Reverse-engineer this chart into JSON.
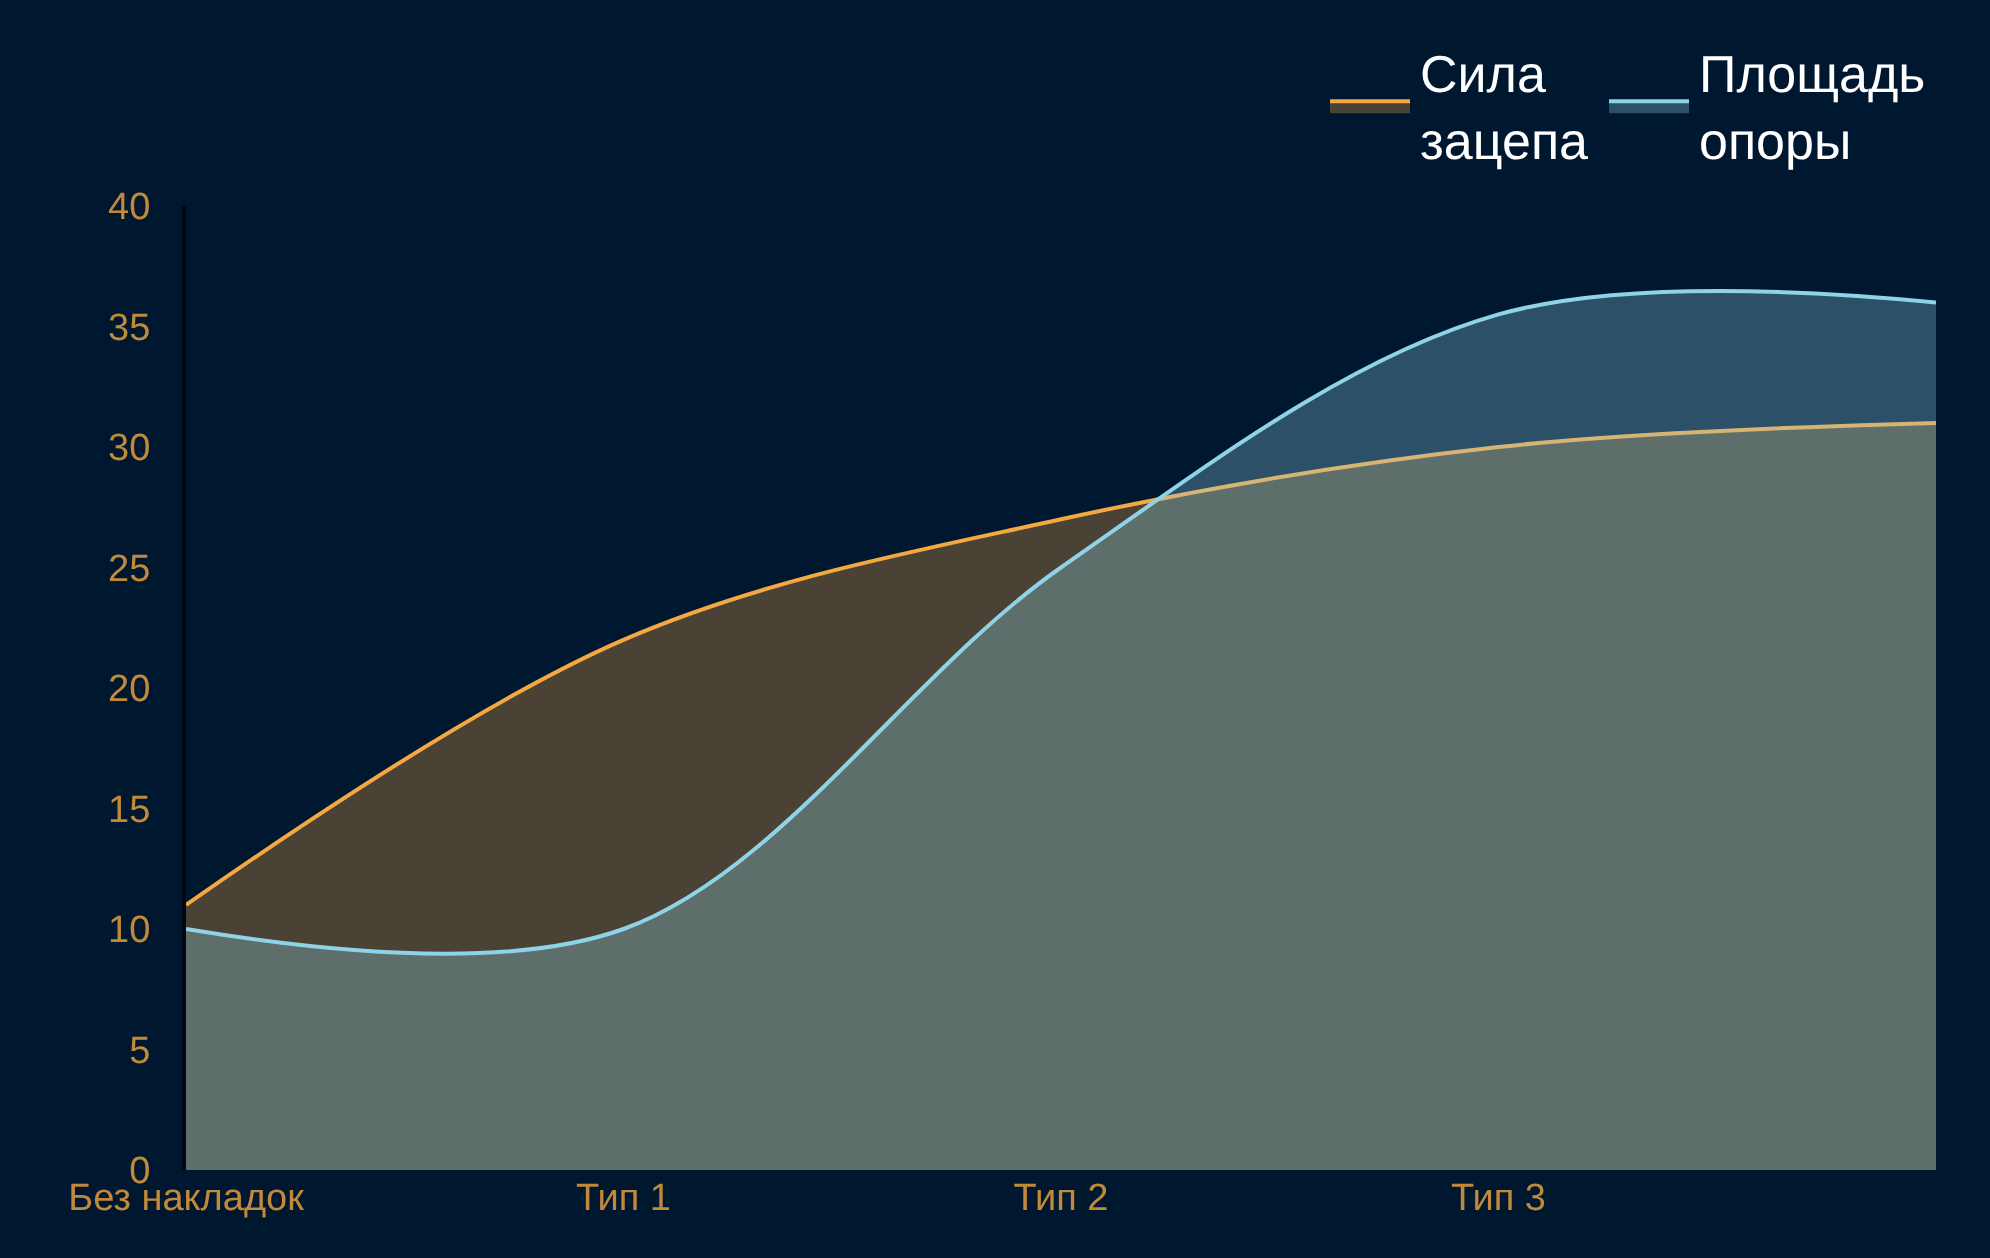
{
  "chart_data": {
    "type": "area",
    "categories": [
      "Без накладок",
      "Тип 1",
      "Тип 2",
      "Тип 3",
      null
    ],
    "series": [
      {
        "name": "Сила зацепа",
        "color": "#f5a742",
        "values": [
          11,
          22,
          27,
          30,
          31
        ]
      },
      {
        "name": "Площадь опоры",
        "color": "#8fd3e8",
        "values": [
          10,
          10,
          25,
          35.5,
          36
        ]
      }
    ],
    "ylim": [
      0,
      40
    ],
    "yticks": [
      0,
      5,
      10,
      15,
      20,
      25,
      30,
      35,
      40
    ],
    "grid": false,
    "legend": "top right",
    "marker": "none",
    "line_style": "solid"
  }
}
